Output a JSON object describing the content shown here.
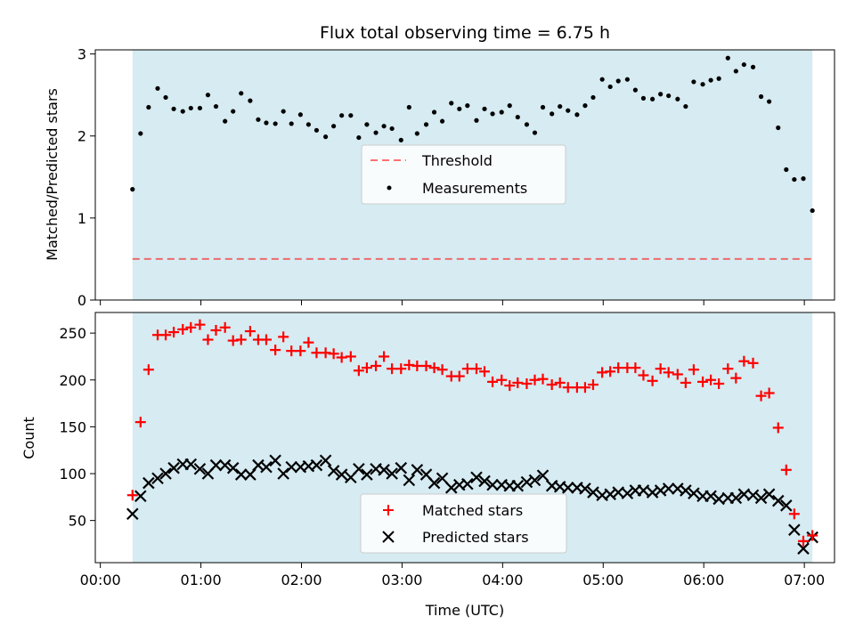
{
  "title": "Flux total observing time = 6.75 h",
  "colors": {
    "span": "#add8e6",
    "threshold": "#ff0000",
    "measurements": "#000000",
    "matched": "#ff0000",
    "predicted": "#000000"
  },
  "chart_data": [
    {
      "type": "scatter",
      "ylabel": "Matched/Predicted stars",
      "xlim": [
        -0.05,
        7.3
      ],
      "ylim": [
        0,
        3.05
      ],
      "x_ticks": [
        0,
        1,
        2,
        3,
        4,
        5,
        6,
        7
      ],
      "y_ticks": [
        0,
        1,
        2,
        3
      ],
      "span": [
        0.32,
        7.08
      ],
      "legend_position": "center",
      "threshold": {
        "name": "Threshold",
        "y": 0.5,
        "x": [
          0.32,
          7.08
        ]
      },
      "series": [
        {
          "name": "Measurements",
          "x": [
            0.32,
            0.4,
            0.48,
            0.57,
            0.65,
            0.73,
            0.82,
            0.9,
            0.99,
            1.07,
            1.15,
            1.24,
            1.32,
            1.4,
            1.49,
            1.57,
            1.65,
            1.74,
            1.82,
            1.9,
            1.99,
            2.07,
            2.15,
            2.24,
            2.32,
            2.4,
            2.49,
            2.57,
            2.65,
            2.74,
            2.82,
            2.9,
            2.99,
            3.07,
            3.15,
            3.24,
            3.32,
            3.4,
            3.49,
            3.57,
            3.65,
            3.74,
            3.82,
            3.9,
            3.99,
            4.07,
            4.15,
            4.24,
            4.32,
            4.4,
            4.49,
            4.57,
            4.65,
            4.74,
            4.82,
            4.9,
            4.99,
            5.07,
            5.15,
            5.24,
            5.32,
            5.4,
            5.49,
            5.57,
            5.65,
            5.74,
            5.82,
            5.9,
            5.99,
            6.07,
            6.15,
            6.24,
            6.32,
            6.4,
            6.49,
            6.57,
            6.65,
            6.74,
            6.82,
            6.9,
            6.99,
            7.08
          ],
          "y": [
            1.35,
            2.03,
            2.35,
            2.58,
            2.47,
            2.33,
            2.3,
            2.34,
            2.34,
            2.5,
            2.36,
            2.18,
            2.3,
            2.52,
            2.43,
            2.2,
            2.16,
            2.15,
            2.3,
            2.15,
            2.26,
            2.14,
            2.07,
            1.99,
            2.12,
            2.25,
            2.25,
            1.98,
            2.14,
            2.04,
            2.12,
            2.09,
            1.95,
            2.35,
            2.03,
            2.14,
            2.29,
            2.18,
            2.4,
            2.33,
            2.37,
            2.19,
            2.33,
            2.27,
            2.29,
            2.37,
            2.23,
            2.14,
            2.04,
            2.35,
            2.27,
            2.36,
            2.31,
            2.26,
            2.37,
            2.47,
            2.69,
            2.6,
            2.67,
            2.69,
            2.56,
            2.46,
            2.45,
            2.51,
            2.49,
            2.45,
            2.36,
            2.66,
            2.63,
            2.68,
            2.7,
            2.95,
            2.79,
            2.87,
            2.84,
            2.48,
            2.42,
            2.1,
            1.59,
            1.47,
            1.48,
            1.09
          ]
        }
      ]
    },
    {
      "type": "scatter",
      "ylabel": "Count",
      "xlabel": "Time (UTC)",
      "xlim": [
        -0.05,
        7.3
      ],
      "ylim": [
        5,
        272
      ],
      "x_ticks": [
        0,
        1,
        2,
        3,
        4,
        5,
        6,
        7
      ],
      "x_tick_labels": [
        "00:00",
        "01:00",
        "02:00",
        "03:00",
        "04:00",
        "05:00",
        "06:00",
        "07:00"
      ],
      "y_ticks": [
        50,
        100,
        150,
        200,
        250
      ],
      "span": [
        0.32,
        7.08
      ],
      "legend_position": "lower center",
      "series": [
        {
          "name": "Matched stars",
          "marker": "+",
          "x": [
            0.32,
            0.4,
            0.48,
            0.57,
            0.65,
            0.73,
            0.82,
            0.9,
            0.99,
            1.07,
            1.15,
            1.24,
            1.32,
            1.4,
            1.49,
            1.57,
            1.65,
            1.74,
            1.82,
            1.9,
            1.99,
            2.07,
            2.15,
            2.24,
            2.32,
            2.4,
            2.49,
            2.57,
            2.65,
            2.74,
            2.82,
            2.9,
            2.99,
            3.07,
            3.15,
            3.24,
            3.32,
            3.4,
            3.49,
            3.57,
            3.65,
            3.74,
            3.82,
            3.9,
            3.99,
            4.07,
            4.15,
            4.24,
            4.32,
            4.4,
            4.49,
            4.57,
            4.65,
            4.74,
            4.82,
            4.9,
            4.99,
            5.07,
            5.15,
            5.24,
            5.32,
            5.4,
            5.49,
            5.57,
            5.65,
            5.74,
            5.82,
            5.9,
            5.99,
            6.07,
            6.15,
            6.24,
            6.32,
            6.4,
            6.49,
            6.57,
            6.65,
            6.74,
            6.82,
            6.9,
            6.99,
            7.08
          ],
          "y": [
            77,
            155,
            211,
            248,
            248,
            251,
            254,
            256,
            259,
            243,
            253,
            256,
            242,
            243,
            252,
            243,
            243,
            232,
            246,
            231,
            231,
            240,
            229,
            229,
            228,
            224,
            225,
            210,
            213,
            215,
            225,
            212,
            212,
            216,
            215,
            215,
            213,
            211,
            204,
            204,
            212,
            212,
            209,
            198,
            200,
            194,
            197,
            196,
            200,
            201,
            195,
            197,
            192,
            192,
            192,
            195,
            208,
            209,
            213,
            213,
            213,
            205,
            199,
            212,
            208,
            206,
            197,
            211,
            198,
            200,
            196,
            212,
            202,
            220,
            218,
            183,
            186,
            149,
            104,
            57,
            28,
            34
          ]
        },
        {
          "name": "Predicted stars",
          "marker": "x",
          "x": [
            0.32,
            0.4,
            0.48,
            0.57,
            0.65,
            0.73,
            0.82,
            0.9,
            0.99,
            1.07,
            1.15,
            1.24,
            1.32,
            1.4,
            1.49,
            1.57,
            1.65,
            1.74,
            1.82,
            1.9,
            1.99,
            2.07,
            2.15,
            2.24,
            2.32,
            2.4,
            2.49,
            2.57,
            2.65,
            2.74,
            2.82,
            2.9,
            2.99,
            3.07,
            3.15,
            3.24,
            3.32,
            3.4,
            3.49,
            3.57,
            3.65,
            3.74,
            3.82,
            3.9,
            3.99,
            4.07,
            4.15,
            4.24,
            4.32,
            4.4,
            4.49,
            4.57,
            4.65,
            4.74,
            4.82,
            4.9,
            4.99,
            5.07,
            5.15,
            5.24,
            5.32,
            5.4,
            5.49,
            5.57,
            5.65,
            5.74,
            5.82,
            5.9,
            5.99,
            6.07,
            6.15,
            6.24,
            6.32,
            6.4,
            6.49,
            6.57,
            6.65,
            6.74,
            6.82,
            6.9,
            6.99,
            7.08
          ],
          "y": [
            57,
            76,
            90,
            95,
            100,
            106,
            110,
            110,
            105,
            100,
            109,
            109,
            106,
            99,
            99,
            109,
            107,
            114,
            100,
            107,
            107,
            108,
            109,
            114,
            103,
            99,
            96,
            105,
            99,
            105,
            104,
            100,
            106,
            93,
            104,
            99,
            90,
            95,
            85,
            88,
            89,
            96,
            92,
            88,
            88,
            87,
            87,
            91,
            93,
            98,
            87,
            86,
            85,
            85,
            84,
            80,
            77,
            78,
            80,
            79,
            82,
            82,
            80,
            82,
            84,
            84,
            82,
            79,
            76,
            76,
            73,
            74,
            74,
            78,
            77,
            74,
            78,
            71,
            66,
            40,
            20,
            32
          ]
        }
      ]
    }
  ]
}
